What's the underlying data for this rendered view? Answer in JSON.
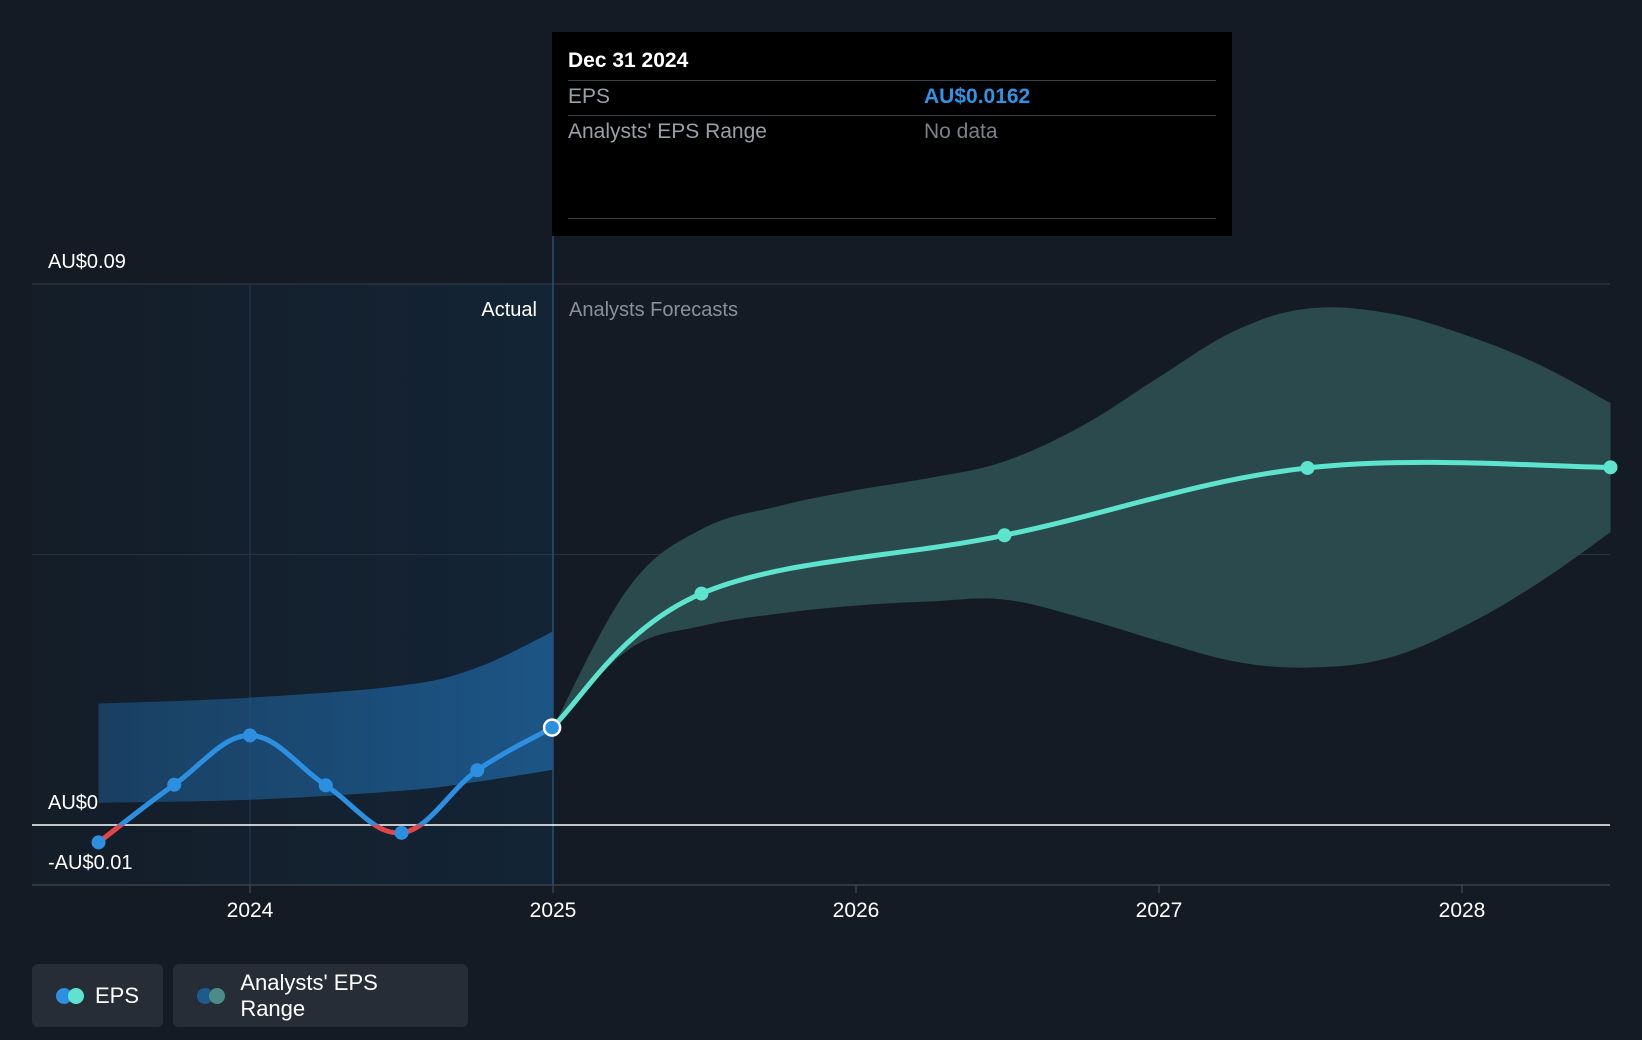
{
  "chart_data": {
    "type": "line",
    "y_ticks": [
      {
        "value": 0.09,
        "label": "AU$0.09"
      },
      {
        "value": 0,
        "label": "AU$0"
      },
      {
        "value": -0.01,
        "label": "-AU$0.01"
      }
    ],
    "x_ticks": [
      "2024",
      "2025",
      "2026",
      "2027",
      "2028"
    ],
    "ylim": [
      -0.01,
      0.09
    ],
    "divider_date": 2025.0,
    "actual_label": "Actual",
    "forecast_label": "Analysts Forecasts",
    "series": [
      {
        "name": "EPS",
        "color_positive": "#2d8fe0",
        "color_negative": "#e0454a",
        "x": [
          2023.5,
          2023.75,
          2024.0,
          2024.25,
          2024.5,
          2024.75,
          2024.997
        ],
        "y": [
          -0.0029,
          0.0067,
          0.0149,
          0.0066,
          -0.0013,
          0.0091,
          0.0162
        ]
      },
      {
        "name": "EPS",
        "color": "#5ee3cf",
        "x": [
          2024.997,
          2025.49,
          2026.49,
          2027.49,
          2028.49
        ],
        "y": [
          0.0162,
          0.0385,
          0.0482,
          0.0594,
          0.0595
        ]
      }
    ],
    "past_range": {
      "x": [
        2023.5,
        2024.0,
        2024.5,
        2024.75,
        2025.0
      ],
      "upper": [
        0.0202,
        0.0212,
        0.0232,
        0.0262,
        0.0322
      ],
      "lower": [
        0.0037,
        0.0042,
        0.0057,
        0.0072,
        0.0092
      ]
    },
    "forecast_range": {
      "x": [
        2025.0,
        2025.25,
        2025.49,
        2025.75,
        2026.0,
        2026.25,
        2026.49,
        2026.75,
        2027.0,
        2027.25,
        2027.49,
        2027.75,
        2028.0,
        2028.25,
        2028.49
      ],
      "upper": [
        0.0162,
        0.0395,
        0.0492,
        0.0531,
        0.0557,
        0.0578,
        0.0605,
        0.0665,
        0.0745,
        0.0822,
        0.0859,
        0.0852,
        0.0817,
        0.0767,
        0.0702
      ],
      "lower": [
        0.0162,
        0.0292,
        0.0331,
        0.0352,
        0.0365,
        0.0372,
        0.0375,
        0.0344,
        0.0306,
        0.0272,
        0.0262,
        0.0277,
        0.0329,
        0.0402,
        0.0487
      ]
    },
    "highlight": {
      "x": 2024.997,
      "y": 0.0162
    },
    "colors": {
      "background": "#151b24",
      "actual_shade": "#132435",
      "past_range_fill": "#1d5a8e",
      "forecast_range_fill": "#2b4d50",
      "grid": "#2c333d",
      "zero_line": "#ffffff"
    }
  },
  "tooltip": {
    "date": "Dec 31 2024",
    "eps_label": "EPS",
    "eps_value": "AU$0.0162",
    "range_label": "Analysts' EPS Range",
    "range_value": "No data"
  },
  "legend": {
    "eps": {
      "label": "EPS",
      "color_a": "#2d8fe0",
      "color_b": "#5ee3cf"
    },
    "range": {
      "label": "Analysts' EPS Range",
      "color_a": "#1d5a8e",
      "color_b": "#4a8d88"
    }
  }
}
